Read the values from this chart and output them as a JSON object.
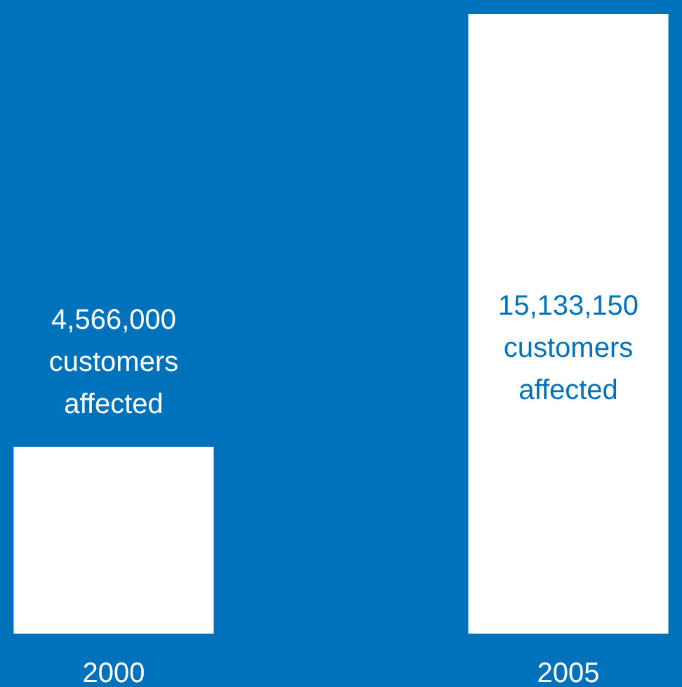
{
  "chart_data": {
    "type": "bar",
    "categories": [
      "2000",
      "2005"
    ],
    "series": [
      {
        "color": "#ffffff",
        "values": [
          4566000,
          15133150
        ],
        "value_labels": [
          "4,566,000\ncustomers\naffected",
          "15,133,150\ncustomers\naffected"
        ]
      }
    ]
  }
}
